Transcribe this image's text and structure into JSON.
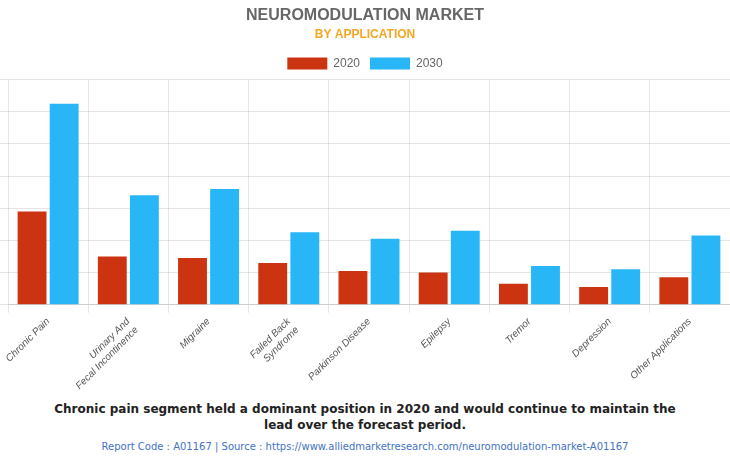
{
  "chart_data": {
    "type": "bar",
    "title": "NEUROMODULATION MARKET",
    "subtitle": "BY APPLICATION",
    "categories": [
      "Chronic Pain",
      "Urinary And\nFecal Incontinence",
      "Migraine",
      "Failed Back\nSyndrome",
      "Parkinson Disease",
      "Epilepsy",
      "Tremor",
      "Depression",
      "Other Applications"
    ],
    "series": [
      {
        "name": "2020",
        "color": "#cc3311",
        "values": [
          5.8,
          3.0,
          2.9,
          2.6,
          2.1,
          2.0,
          1.3,
          1.1,
          1.7
        ]
      },
      {
        "name": "2030",
        "color": "#29b6f6",
        "values": [
          12.5,
          6.8,
          7.2,
          4.5,
          4.1,
          4.6,
          2.4,
          2.2,
          4.3
        ]
      }
    ],
    "ylim": [
      0,
      14
    ],
    "yticks": [
      0,
      2,
      4,
      6,
      8,
      10,
      12,
      14
    ],
    "grid": true,
    "legend": "top",
    "tick_labels": "x",
    "annotations": [
      "Chronic pain segment held a dominant position in 2020 and would continue to maintain the",
      "lead over the forecast period."
    ],
    "footer": "Report Code : A01167  |  Source : https://www.alliedmarketresearch.com/neuromodulation-market-A01167"
  }
}
